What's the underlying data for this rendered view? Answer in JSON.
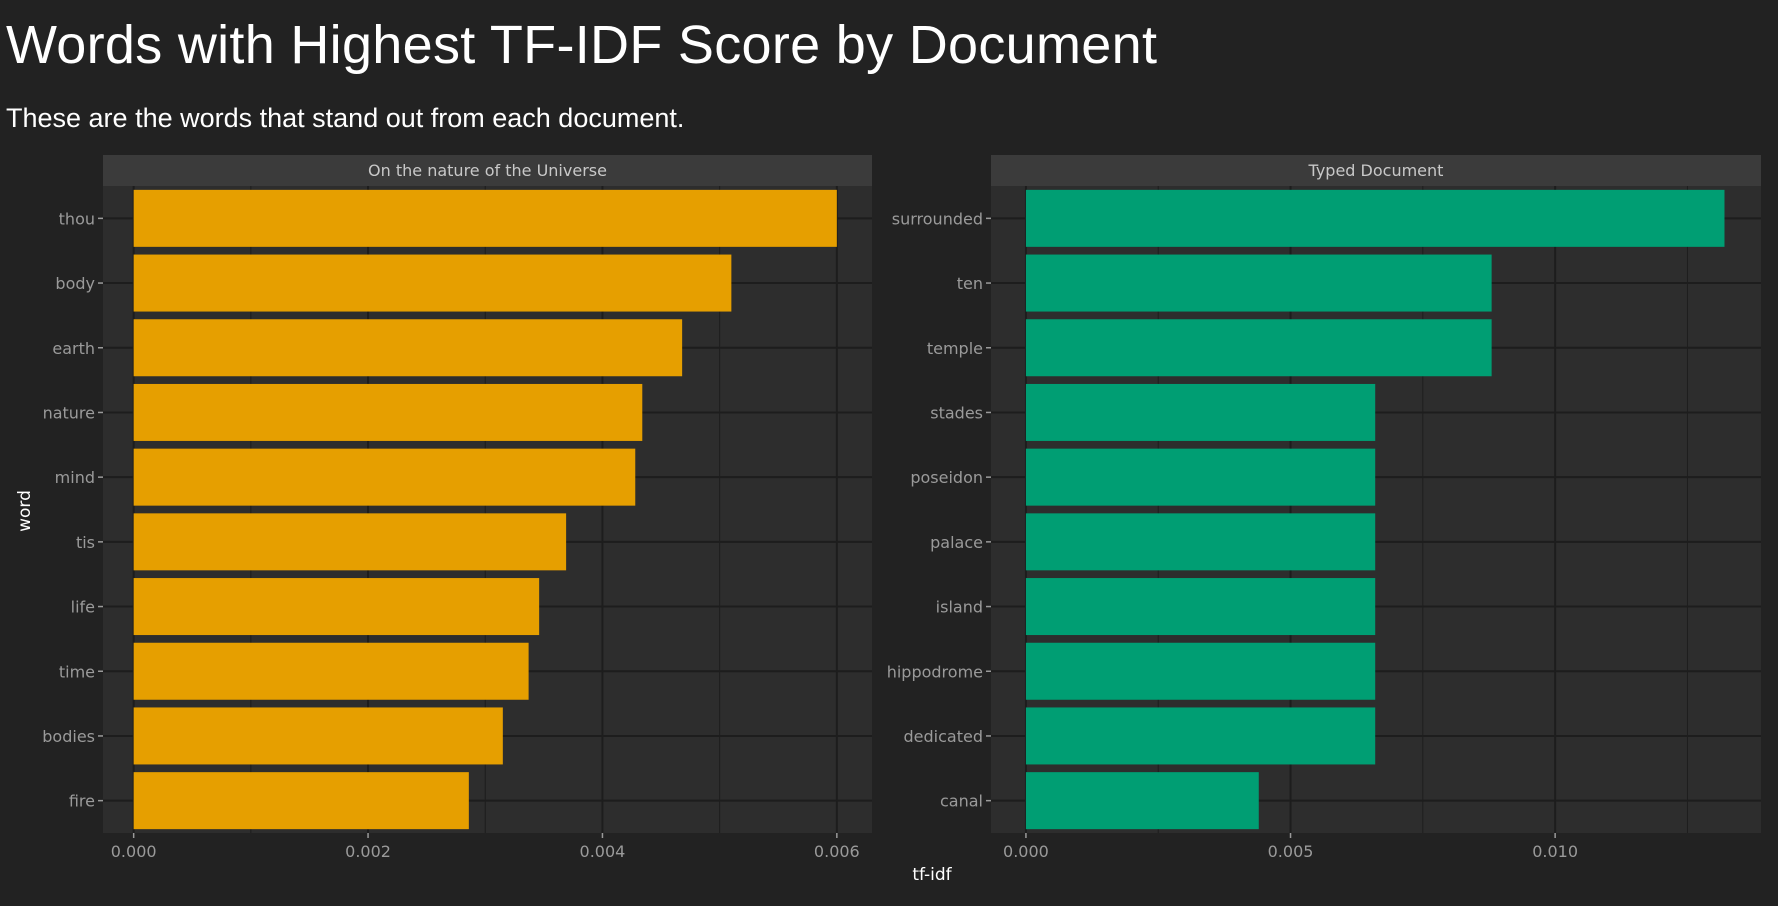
{
  "header": {
    "title": "Words with Highest TF-IDF Score by Document",
    "subtitle": "These are the words that stand out from each document."
  },
  "colors": {
    "background": "#222222",
    "panel": "#2d2d2d",
    "strip": "#3b3b3b",
    "grid": "#1d1d1d",
    "tick_text": "#9a9a9a",
    "strip_text": "#c8c8c8",
    "axis_title": "#ffffff"
  },
  "chart_data": {
    "type": "bar",
    "orientation": "horizontal",
    "xlabel": "tf-idf",
    "ylabel": "word",
    "grid": true,
    "facets": [
      {
        "name": "On the nature of the Universe",
        "color": "#E69F00",
        "xlim": [
          -0.0002616,
          0.0063
        ],
        "xticks": [
          0,
          0.002,
          0.004,
          0.006
        ],
        "xtick_labels": [
          "0.000",
          "0.002",
          "0.004",
          "0.006"
        ],
        "categories": [
          "thou",
          "body",
          "earth",
          "nature",
          "mind",
          "tis",
          "life",
          "time",
          "bodies",
          "fire"
        ],
        "values": [
          0.006,
          0.0051,
          0.00468,
          0.00434,
          0.00428,
          0.00369,
          0.00346,
          0.00337,
          0.00315,
          0.00286
        ]
      },
      {
        "name": "Typed Document",
        "color": "#009E73",
        "xlim": [
          -0.00066,
          0.01389
        ],
        "xticks": [
          0,
          0.005,
          0.01
        ],
        "xtick_labels": [
          "0.000",
          "0.005",
          "0.010"
        ],
        "categories": [
          "surrounded",
          "ten",
          "temple",
          "stades",
          "poseidon",
          "palace",
          "island",
          "hippodrome",
          "dedicated",
          "canal"
        ],
        "values": [
          0.0132,
          0.0088,
          0.0088,
          0.0066,
          0.0066,
          0.0066,
          0.0066,
          0.0066,
          0.0066,
          0.0044
        ]
      }
    ]
  }
}
